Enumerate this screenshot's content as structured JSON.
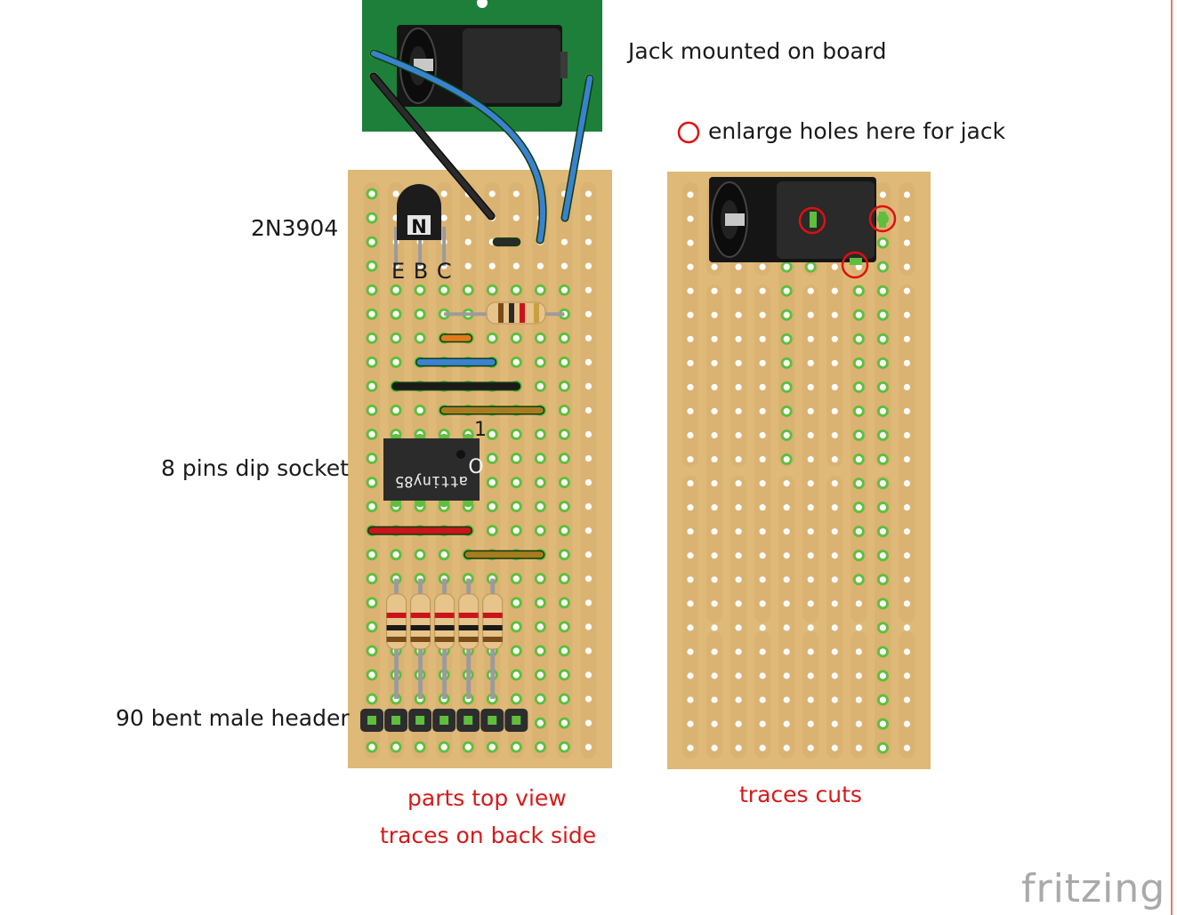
{
  "labels": {
    "jack_mounted": "Jack mounted on board",
    "enlarge_holes": "enlarge holes here for jack",
    "transistor": "2N3904",
    "pins_ebc": "E B C",
    "dip_socket": "8 pins dip socket",
    "header": "90 bent male header",
    "parts_top_view": "parts top view",
    "traces_back": "traces on back side",
    "traces_cuts": "traces cuts",
    "chip_text": "attiny85",
    "pin1_mark": "1",
    "chip_circle": "O",
    "transistor_mark": "N"
  },
  "watermark": "fritzing",
  "colors": {
    "board": "#dfb978",
    "hole_green": "#5fbe3e",
    "hole_center": "#ffffff",
    "pcb_green": "#1e7f3a",
    "wire_blue": "#3a82cf",
    "wire_black": "#1a1a1a",
    "wire_red": "#c9151a",
    "wire_olive": "#a67d1e",
    "wire_orange": "#e07a1d",
    "label_red": "#d51a1a",
    "cut_circle": "#e01010"
  },
  "icons": [
    "dc-jack-icon",
    "transistor-icon",
    "resistor-icon",
    "dip-chip-icon",
    "pin-header-icon"
  ]
}
